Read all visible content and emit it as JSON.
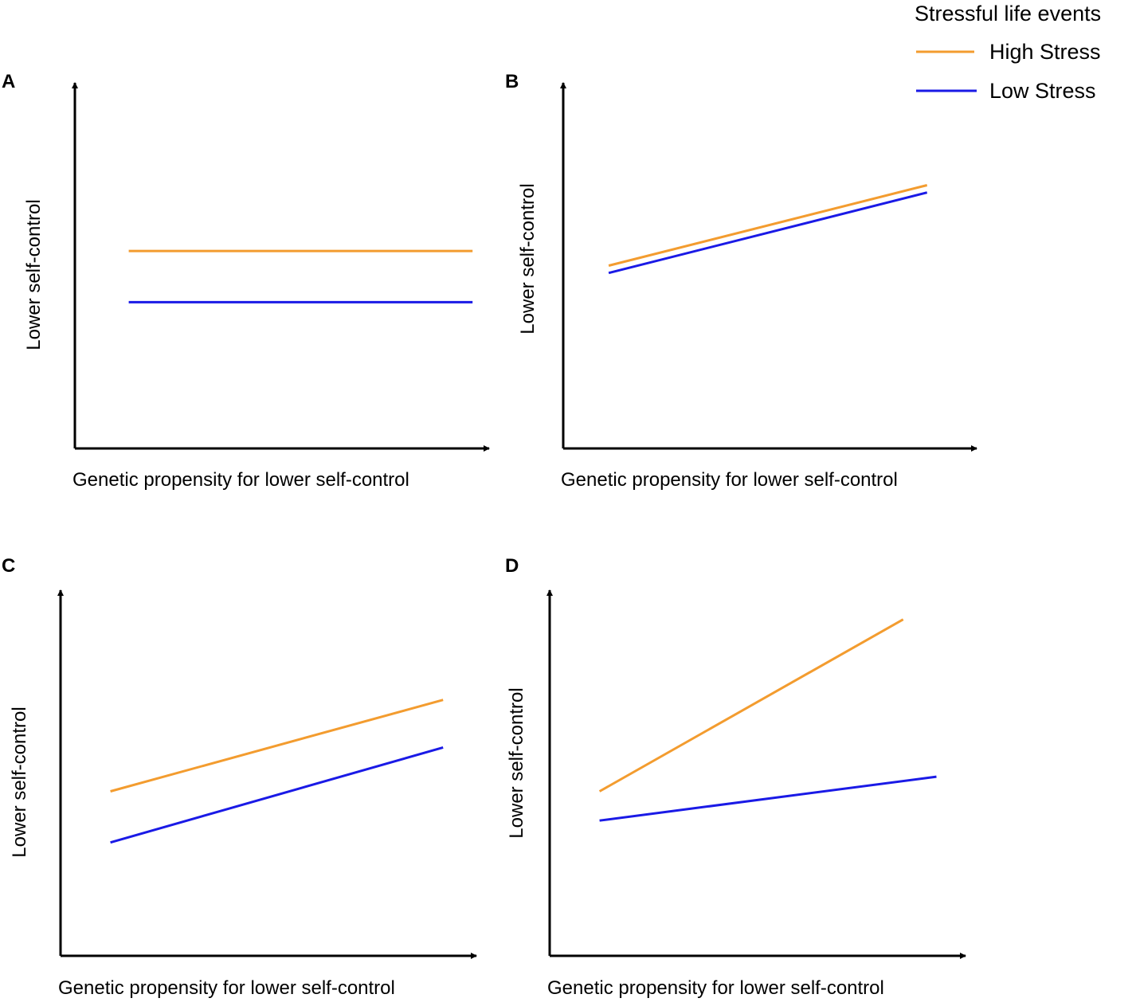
{
  "legend": {
    "title": "Stressful life events",
    "entries": [
      {
        "label": "High Stress",
        "color": "#f39c2f"
      },
      {
        "label": "Low Stress",
        "color": "#1a1ae6"
      }
    ]
  },
  "colors": {
    "axis": "#000000",
    "high_stress": "#f39c2f",
    "low_stress": "#1a1ae6"
  },
  "chart_data": [
    {
      "type": "line",
      "panel": "A",
      "xlabel": "Genetic propensity for lower self-control",
      "ylabel": "Lower self-control",
      "xlim": [
        0,
        10
      ],
      "ylim": [
        0,
        10
      ],
      "grid": false,
      "series": [
        {
          "name": "High Stress",
          "x": [
            1.3,
            9.6
          ],
          "y": [
            5.4,
            5.4
          ]
        },
        {
          "name": "Low Stress",
          "x": [
            1.3,
            9.6
          ],
          "y": [
            4.0,
            4.0
          ]
        }
      ]
    },
    {
      "type": "line",
      "panel": "B",
      "xlabel": "Genetic propensity for lower self-control",
      "ylabel": "Lower self-control",
      "xlim": [
        0,
        10
      ],
      "ylim": [
        0,
        10
      ],
      "grid": false,
      "series": [
        {
          "name": "High Stress",
          "x": [
            1.1,
            8.8
          ],
          "y": [
            5.0,
            7.2
          ]
        },
        {
          "name": "Low Stress",
          "x": [
            1.1,
            8.8
          ],
          "y": [
            4.8,
            7.0
          ]
        }
      ]
    },
    {
      "type": "line",
      "panel": "C",
      "xlabel": "Genetic propensity for lower self-control",
      "ylabel": "Lower self-control",
      "xlim": [
        0,
        10
      ],
      "ylim": [
        0,
        10
      ],
      "grid": false,
      "series": [
        {
          "name": "High Stress",
          "x": [
            1.2,
            9.2
          ],
          "y": [
            4.5,
            7.0
          ]
        },
        {
          "name": "Low Stress",
          "x": [
            1.2,
            9.2
          ],
          "y": [
            3.1,
            5.7
          ]
        }
      ]
    },
    {
      "type": "line",
      "panel": "D",
      "xlabel": "Genetic propensity for lower self-control",
      "ylabel": "Lower self-control",
      "xlim": [
        0,
        10
      ],
      "ylim": [
        0,
        10
      ],
      "grid": false,
      "series": [
        {
          "name": "High Stress",
          "x": [
            1.2,
            8.5
          ],
          "y": [
            4.5,
            9.2
          ]
        },
        {
          "name": "Low Stress",
          "x": [
            1.2,
            9.3
          ],
          "y": [
            3.7,
            4.9
          ]
        }
      ]
    }
  ]
}
